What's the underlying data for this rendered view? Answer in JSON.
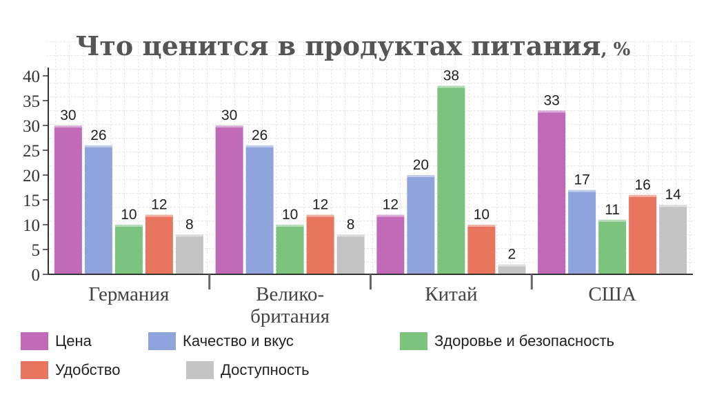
{
  "chart_data": {
    "type": "bar",
    "title": "Что ценится в продуктах питания",
    "title_unit": ", %",
    "categories": [
      [
        "Германия"
      ],
      [
        "Велико-",
        "британия"
      ],
      [
        "Китай"
      ],
      [
        "США"
      ]
    ],
    "series": [
      {
        "name": "Цена",
        "color": "#c06ab8",
        "values": [
          30,
          30,
          12,
          33
        ]
      },
      {
        "name": "Качество и вкус",
        "color": "#8fa3dc",
        "values": [
          26,
          26,
          20,
          17
        ]
      },
      {
        "name": "Здоровье и безопасность",
        "color": "#7cc47e",
        "values": [
          10,
          10,
          38,
          11
        ]
      },
      {
        "name": "Удобство",
        "color": "#e8765e",
        "values": [
          12,
          12,
          10,
          16
        ]
      },
      {
        "name": "Доступность",
        "color": "#c4c4c4",
        "values": [
          8,
          8,
          2,
          14
        ]
      }
    ],
    "ylim": [
      0,
      40
    ],
    "yticks": [
      0,
      5,
      10,
      15,
      20,
      25,
      30,
      35,
      40
    ],
    "grid": true,
    "legend_position": "bottom"
  }
}
